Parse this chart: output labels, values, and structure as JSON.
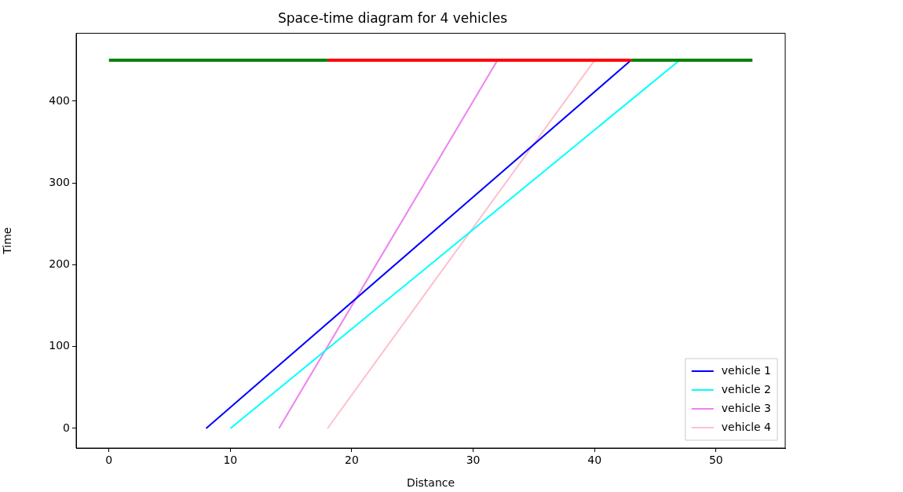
{
  "chart_data": {
    "type": "line",
    "title": "Space-time diagram for 4 vehicles",
    "xlabel": "Distance",
    "ylabel": "Time",
    "xlim": [
      -2.7,
      55.7
    ],
    "xticks": [
      0,
      10,
      20,
      30,
      40,
      50
    ],
    "ylim": [
      -24,
      483
    ],
    "yticks": [
      0,
      100,
      200,
      300,
      400
    ],
    "grid": false,
    "legend": "bottom right",
    "marker": "none",
    "line_style": "solid",
    "series": [
      {
        "color": "#008000",
        "x": [
          0,
          18
        ],
        "values": [
          450,
          450
        ]
      },
      {
        "color": "#ff0000",
        "x": [
          18,
          43
        ],
        "values": [
          450,
          450
        ]
      },
      {
        "color": "#008000",
        "x": [
          43,
          53
        ],
        "values": [
          450,
          450
        ]
      },
      {
        "name": "vehicle 1",
        "color": "#0000ff",
        "x": [
          8,
          43
        ],
        "values": [
          0,
          450
        ]
      },
      {
        "name": "vehicle 2",
        "color": "#00ffff",
        "x": [
          10,
          47
        ],
        "values": [
          0,
          450
        ]
      },
      {
        "name": "vehicle 3",
        "color": "#ee82ee",
        "x": [
          14,
          32
        ],
        "values": [
          0,
          450
        ]
      },
      {
        "name": "vehicle 4",
        "color": "#ffc0cb",
        "x": [
          18,
          40
        ],
        "values": [
          0,
          450
        ]
      }
    ]
  }
}
